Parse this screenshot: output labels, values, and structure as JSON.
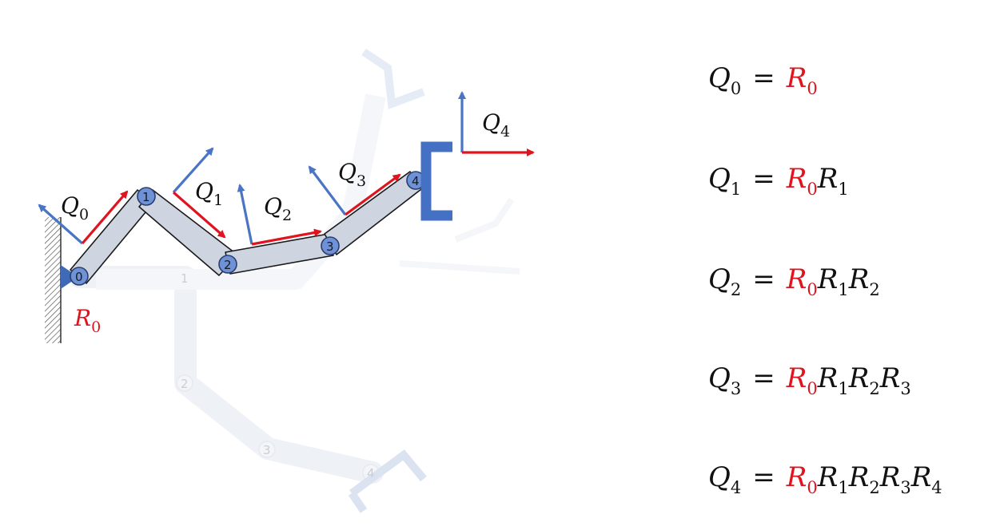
{
  "labels": {
    "q0": {
      "base": "Q",
      "sub": "0"
    },
    "q1": {
      "base": "Q",
      "sub": "1"
    },
    "q2": {
      "base": "Q",
      "sub": "2"
    },
    "q3": {
      "base": "Q",
      "sub": "3"
    },
    "q4": {
      "base": "Q",
      "sub": "4"
    },
    "r0": {
      "base": "R",
      "sub": "0"
    }
  },
  "joints": [
    "0",
    "1",
    "2",
    "3",
    "4"
  ],
  "ghost_joints": [
    "1",
    "2",
    "3",
    "4"
  ],
  "equations": [
    {
      "lhs": "Q",
      "lhs_sub": "0",
      "red": [
        [
          "R",
          "0"
        ]
      ],
      "black": []
    },
    {
      "lhs": "Q",
      "lhs_sub": "1",
      "red": [
        [
          "R",
          "0"
        ]
      ],
      "black": [
        [
          "R",
          "1"
        ]
      ]
    },
    {
      "lhs": "Q",
      "lhs_sub": "2",
      "red": [
        [
          "R",
          "0"
        ]
      ],
      "black": [
        [
          "R",
          "1"
        ],
        [
          "R",
          "2"
        ]
      ]
    },
    {
      "lhs": "Q",
      "lhs_sub": "3",
      "red": [
        [
          "R",
          "0"
        ]
      ],
      "black": [
        [
          "R",
          "1"
        ],
        [
          "R",
          "2"
        ],
        [
          "R",
          "3"
        ]
      ]
    },
    {
      "lhs": "Q",
      "lhs_sub": "4",
      "red": [
        [
          "R",
          "0"
        ]
      ],
      "black": [
        [
          "R",
          "1"
        ],
        [
          "R",
          "2"
        ],
        [
          "R",
          "3"
        ],
        [
          "R",
          "4"
        ]
      ]
    }
  ],
  "equals_sign": "=",
  "colors": {
    "red": "#e0141e",
    "blue": "#4a74c4",
    "link": "#cfd5e0",
    "ghost": "#eef1f6"
  }
}
